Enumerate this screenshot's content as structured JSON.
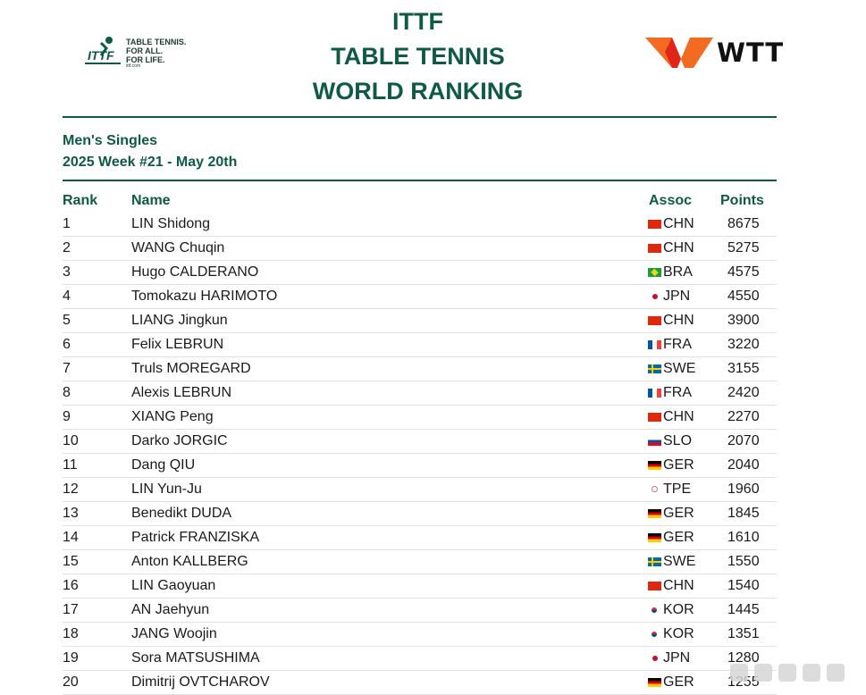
{
  "header": {
    "title_lines": [
      "ITTF",
      "TABLE TENNIS",
      "WORLD RANKING"
    ],
    "ittf_logo": {
      "tagline": "TABLE TENNIS.\nFOR ALL.\nFOR LIFE.",
      "url": "ittf.com"
    },
    "wtt_logo": {
      "text": "WTT"
    }
  },
  "subtitle": {
    "category": "Men's Singles",
    "week": "2025 Week #21 - May 20th"
  },
  "table": {
    "columns": [
      "Rank",
      "Name",
      "Assoc",
      "Points"
    ],
    "rows": [
      {
        "rank": "1",
        "name": "LIN Shidong",
        "assoc": "CHN",
        "points": "8675"
      },
      {
        "rank": "2",
        "name": "WANG Chuqin",
        "assoc": "CHN",
        "points": "5275"
      },
      {
        "rank": "3",
        "name": "Hugo CALDERANO",
        "assoc": "BRA",
        "points": "4575"
      },
      {
        "rank": "4",
        "name": "Tomokazu HARIMOTO",
        "assoc": "JPN",
        "points": "4550"
      },
      {
        "rank": "5",
        "name": "LIANG Jingkun",
        "assoc": "CHN",
        "points": "3900"
      },
      {
        "rank": "6",
        "name": "Felix LEBRUN",
        "assoc": "FRA",
        "points": "3220"
      },
      {
        "rank": "7",
        "name": "Truls MOREGARD",
        "assoc": "SWE",
        "points": "3155"
      },
      {
        "rank": "8",
        "name": "Alexis LEBRUN",
        "assoc": "FRA",
        "points": "2420"
      },
      {
        "rank": "9",
        "name": "XIANG Peng",
        "assoc": "CHN",
        "points": "2270"
      },
      {
        "rank": "10",
        "name": "Darko JORGIC",
        "assoc": "SLO",
        "points": "2070"
      },
      {
        "rank": "11",
        "name": "Dang QIU",
        "assoc": "GER",
        "points": "2040"
      },
      {
        "rank": "12",
        "name": "LIN Yun-Ju",
        "assoc": "TPE",
        "points": "1960"
      },
      {
        "rank": "13",
        "name": "Benedikt DUDA",
        "assoc": "GER",
        "points": "1845"
      },
      {
        "rank": "14",
        "name": "Patrick FRANZISKA",
        "assoc": "GER",
        "points": "1610"
      },
      {
        "rank": "15",
        "name": "Anton KALLBERG",
        "assoc": "SWE",
        "points": "1550"
      },
      {
        "rank": "16",
        "name": "LIN Gaoyuan",
        "assoc": "CHN",
        "points": "1540"
      },
      {
        "rank": "17",
        "name": "AN Jaehyun",
        "assoc": "KOR",
        "points": "1445"
      },
      {
        "rank": "18",
        "name": "JANG Woojin",
        "assoc": "KOR",
        "points": "1351"
      },
      {
        "rank": "19",
        "name": "Sora MATSUSHIMA",
        "assoc": "JPN",
        "points": "1280"
      },
      {
        "rank": "20",
        "name": "Dimitrij OVTCHAROV",
        "assoc": "GER",
        "points": "1255"
      }
    ]
  },
  "colors": {
    "accent": "#0e5a45",
    "wtt_orange": "#f26b21",
    "wtt_red": "#e1251b"
  }
}
